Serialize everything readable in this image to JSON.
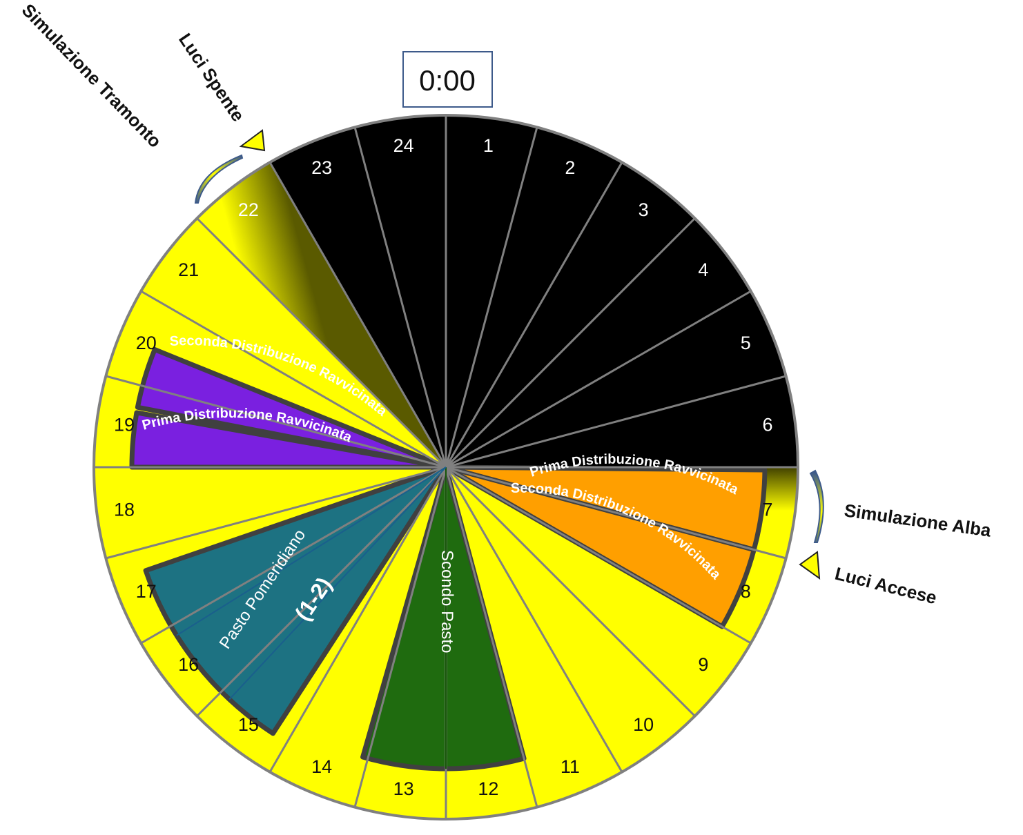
{
  "clock": {
    "time_label": "0:00",
    "hours": [
      "1",
      "2",
      "3",
      "4",
      "5",
      "6",
      "7",
      "8",
      "9",
      "10",
      "11",
      "12",
      "13",
      "14",
      "15",
      "16",
      "17",
      "18",
      "19",
      "20",
      "21",
      "22",
      "23",
      "24"
    ]
  },
  "bands": {
    "morning_first": "Prima Distribuzione Ravvicinata",
    "morning_second": "Seconda Distribuzione Ravvicinata",
    "evening_first": "Prima Distribuzione Ravvicinata",
    "evening_second": "Seconda Distribuzione Ravvicinata"
  },
  "meals": {
    "second_meal": "Scondo Pasto",
    "afternoon_meal": "Pasto Pomeridiano",
    "afternoon_meal_count": "(1-2)"
  },
  "annotations": {
    "sunrise": "Simulazione Alba",
    "lights_on": "Luci Accese",
    "sunset": "Simulazione Tramonto",
    "lights_off": "Luci Spente"
  },
  "colors": {
    "night": "#000000",
    "day": "#ffff00",
    "morning_band": "#ff9f00",
    "evening_band": "#7a20e0",
    "second_meal": "#1f6b0f",
    "afternoon_meal": "#1d7282",
    "divider": "#808080",
    "outline": "#404040",
    "arrow": "#3d5a8a"
  }
}
